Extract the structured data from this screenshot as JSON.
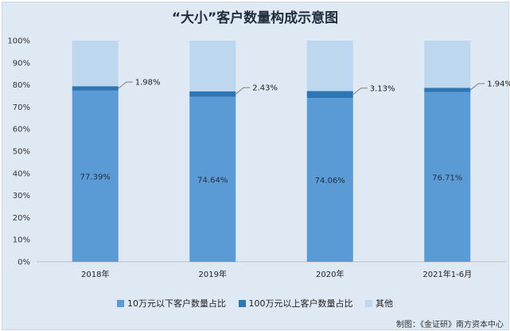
{
  "chart_data": {
    "type": "bar",
    "stacked": true,
    "percent_stacked": true,
    "title": "“大小”客户数量构成示意图",
    "categories": [
      "2018年",
      "2019年",
      "2020年",
      "2021年1-6月"
    ],
    "series": [
      {
        "name": "10万元以下客户数量占比",
        "values": [
          77.39,
          74.64,
          74.06,
          76.71
        ],
        "labels": [
          "77.39%",
          "74.64%",
          "74.06%",
          "76.71%"
        ],
        "color": "#5b9bd5"
      },
      {
        "name": "100万元以上客户数量占比",
        "values": [
          1.98,
          2.43,
          3.13,
          1.94
        ],
        "labels": [
          "1.98%",
          "2.43%",
          "3.13%",
          "1.94%"
        ],
        "color": "#2e75b6"
      },
      {
        "name": "其他",
        "values": [
          20.63,
          22.93,
          22.81,
          21.35
        ],
        "color": "#bdd7ee"
      }
    ],
    "yticks": [
      "0%",
      "10%",
      "20%",
      "30%",
      "40%",
      "50%",
      "60%",
      "70%",
      "80%",
      "90%",
      "100%"
    ],
    "ylim": [
      0,
      100
    ],
    "grid": false,
    "legend": "bottom",
    "source": "制图：《金证研》南方资本中心"
  }
}
